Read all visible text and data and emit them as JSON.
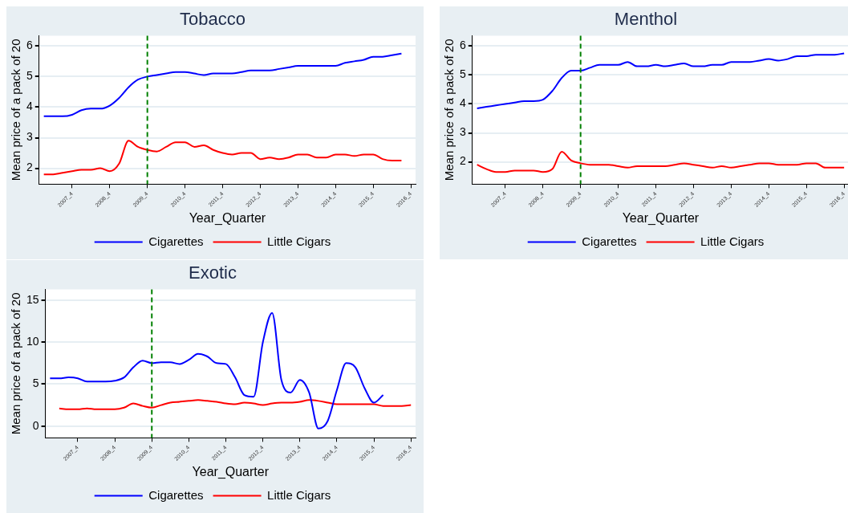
{
  "chart_data": [
    {
      "type": "line",
      "title": "Tobacco",
      "xlabel": "Year_Quarter",
      "ylabel": "Mean price of a pack of 20",
      "ylim": [
        1.48,
        6.34
      ],
      "categories": [
        null,
        null,
        null,
        "2007_4",
        null,
        null,
        null,
        "2008_4",
        null,
        null,
        null,
        "2009_4",
        null,
        null,
        null,
        "2010_4",
        null,
        null,
        null,
        "2011_4",
        null,
        null,
        null,
        "2012_4",
        null,
        null,
        null,
        "2013_4",
        null,
        null,
        null,
        "2014_4",
        null,
        null,
        null,
        "2015_4",
        null,
        null,
        null,
        "2016_4"
      ],
      "yticks": [
        2,
        3,
        4,
        5,
        6
      ],
      "grid": "y",
      "legend": "bottom",
      "marker": "none",
      "ref_lines": [
        {
          "axis": "x",
          "value": "2009_4",
          "color": "#008000",
          "line_style": "dashed"
        }
      ],
      "series": [
        {
          "name": "Cigarettes",
          "color": "#0000ff",
          "values": [
            3.7,
            3.7,
            3.7,
            3.75,
            3.9,
            3.95,
            3.95,
            4.05,
            4.3,
            4.65,
            4.9,
            5.0,
            5.05,
            5.1,
            5.15,
            5.15,
            5.1,
            5.05,
            5.1,
            5.1,
            5.1,
            5.15,
            5.2,
            5.2,
            5.2,
            5.25,
            5.3,
            5.35,
            5.35,
            5.35,
            5.35,
            5.35,
            5.45,
            5.5,
            5.55,
            5.65,
            5.65,
            5.7,
            5.75,
            null
          ]
        },
        {
          "name": "Little Cigars",
          "color": "#ff0000",
          "values": [
            1.8,
            1.8,
            1.85,
            1.9,
            1.95,
            1.95,
            2.0,
            1.9,
            2.15,
            2.9,
            2.7,
            2.6,
            2.55,
            2.7,
            2.85,
            2.85,
            2.7,
            2.75,
            2.6,
            2.5,
            2.45,
            2.5,
            2.5,
            2.3,
            2.35,
            2.3,
            2.35,
            2.45,
            2.45,
            2.35,
            2.35,
            2.45,
            2.45,
            2.4,
            2.45,
            2.45,
            2.3,
            2.25,
            2.25,
            null
          ]
        }
      ]
    },
    {
      "type": "line",
      "title": "Menthol",
      "xlabel": "Year_Quarter",
      "ylabel": "Mean price of a pack of 20",
      "ylim": [
        1.23,
        6.36
      ],
      "categories": [
        null,
        null,
        null,
        "2007_4",
        null,
        null,
        null,
        "2008_4",
        null,
        null,
        null,
        "2009_4",
        null,
        null,
        null,
        "2010_4",
        null,
        null,
        null,
        "2011_4",
        null,
        null,
        null,
        "2012_4",
        null,
        null,
        null,
        "2013_4",
        null,
        null,
        null,
        "2014_4",
        null,
        null,
        null,
        "2015_4",
        null,
        null,
        null,
        "2016_4"
      ],
      "yticks": [
        2,
        3,
        4,
        5,
        6
      ],
      "grid": "y",
      "legend": "bottom",
      "marker": "none",
      "ref_lines": [
        {
          "axis": "x",
          "value": "2009_4",
          "color": "#008000",
          "line_style": "dashed"
        }
      ],
      "series": [
        {
          "name": "Cigarettes",
          "color": "#0000ff",
          "values": [
            3.85,
            3.9,
            3.95,
            4.0,
            4.05,
            4.1,
            4.1,
            4.15,
            4.45,
            4.9,
            5.15,
            5.15,
            5.25,
            5.35,
            5.35,
            5.35,
            5.45,
            5.3,
            5.3,
            5.35,
            5.3,
            5.35,
            5.4,
            5.3,
            5.3,
            5.35,
            5.35,
            5.45,
            5.45,
            5.45,
            5.5,
            5.55,
            5.5,
            5.55,
            5.65,
            5.65,
            5.7,
            5.7,
            5.7,
            5.75
          ]
        },
        {
          "name": "Little Cigars",
          "color": "#ff0000",
          "values": [
            1.9,
            1.75,
            1.65,
            1.65,
            1.7,
            1.7,
            1.7,
            1.65,
            1.75,
            2.35,
            2.05,
            1.95,
            1.9,
            1.9,
            1.9,
            1.85,
            1.8,
            1.85,
            1.85,
            1.85,
            1.85,
            1.9,
            1.95,
            1.9,
            1.85,
            1.8,
            1.85,
            1.8,
            1.85,
            1.9,
            1.95,
            1.95,
            1.9,
            1.9,
            1.9,
            1.95,
            1.95,
            1.8,
            1.8,
            1.8
          ]
        }
      ]
    },
    {
      "type": "line",
      "title": "Exotic",
      "xlabel": "Year_Quarter",
      "ylabel": "Mean price of a pack of 20",
      "ylim": [
        -1.4,
        16.3
      ],
      "categories": [
        null,
        null,
        null,
        "2007_4",
        null,
        null,
        null,
        "2008_4",
        null,
        null,
        null,
        "2009_4",
        null,
        null,
        null,
        "2010_4",
        null,
        null,
        null,
        "2011_4",
        null,
        null,
        null,
        "2012_4",
        null,
        null,
        null,
        "2013_4",
        null,
        null,
        null,
        "2014_4",
        null,
        null,
        null,
        "2015_4",
        null,
        null,
        null,
        "2016_4"
      ],
      "yticks": [
        0,
        5,
        10,
        15
      ],
      "grid": "y",
      "legend": "bottom",
      "marker": "none",
      "ref_lines": [
        {
          "axis": "x",
          "value": "2009_4",
          "color": "#008000",
          "line_style": "dashed"
        }
      ],
      "series": [
        {
          "name": "Cigarettes",
          "color": "#0000ff",
          "values": [
            5.7,
            5.7,
            5.8,
            5.7,
            5.3,
            5.3,
            5.3,
            5.4,
            5.8,
            7.0,
            7.8,
            7.5,
            7.6,
            7.6,
            7.4,
            7.9,
            8.6,
            8.3,
            7.5,
            7.4,
            5.8,
            3.7,
            3.5,
            10.0,
            13.5,
            5.5,
            4.0,
            5.5,
            4.0,
            -0.3,
            0.6,
            4.3,
            7.5,
            7.0,
            4.5,
            2.8,
            3.7,
            null,
            null,
            null
          ]
        },
        {
          "name": "Little Cigars",
          "color": "#ff0000",
          "values": [
            null,
            2.1,
            2.0,
            2.0,
            2.1,
            2.0,
            2.0,
            2.0,
            2.2,
            2.7,
            2.4,
            2.2,
            2.5,
            2.8,
            2.9,
            3.0,
            3.1,
            3.0,
            2.9,
            2.7,
            2.6,
            2.8,
            2.7,
            2.5,
            2.7,
            2.8,
            2.8,
            2.9,
            3.1,
            3.0,
            2.8,
            2.6,
            2.6,
            2.6,
            2.6,
            2.6,
            2.4,
            2.4,
            2.4,
            2.5
          ]
        }
      ]
    }
  ]
}
